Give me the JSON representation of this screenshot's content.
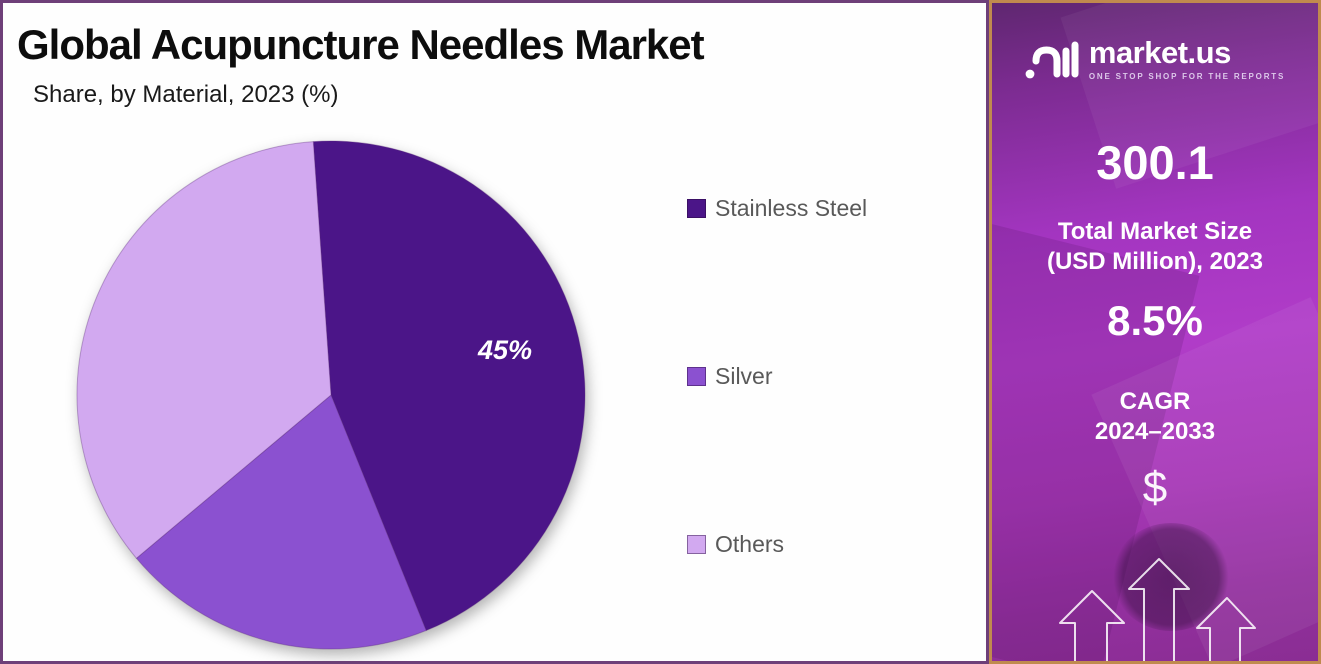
{
  "header": {
    "title": "Global Acupuncture Needles Market",
    "subtitle": "Share, by Material, 2023 (%)"
  },
  "chart_data": {
    "type": "pie",
    "title": "Global Acupuncture Needles Market",
    "subtitle": "Share, by Material, 2023 (%)",
    "categories": [
      "Stainless Steel",
      "Silver",
      "Others"
    ],
    "values": [
      45,
      20,
      35
    ],
    "unit": "%",
    "colors": [
      "#4b1588",
      "#8b51d0",
      "#d2a9f0"
    ],
    "start_angle_deg": -4,
    "slice_label_text": "45%",
    "labeled_slice": "Stainless Steel",
    "legend_position": "right"
  },
  "sidebar": {
    "logo": {
      "brand": "market.us",
      "tagline": "ONE STOP SHOP FOR THE REPORTS"
    },
    "market_size_value": "300.1",
    "market_size_label_line1": "Total Market Size",
    "market_size_label_line2": "(USD Million), 2023",
    "cagr_value": "8.5%",
    "cagr_label_line1": "CAGR",
    "cagr_label_line2": "2024–2033",
    "dollar_symbol": "$",
    "accent_border_color": "#c08a4e",
    "background_color": "#a335c0"
  },
  "colors": {
    "chart_panel_border": "#6e3f79",
    "legend_text": "#595959",
    "title_text": "#0d0d0d"
  }
}
